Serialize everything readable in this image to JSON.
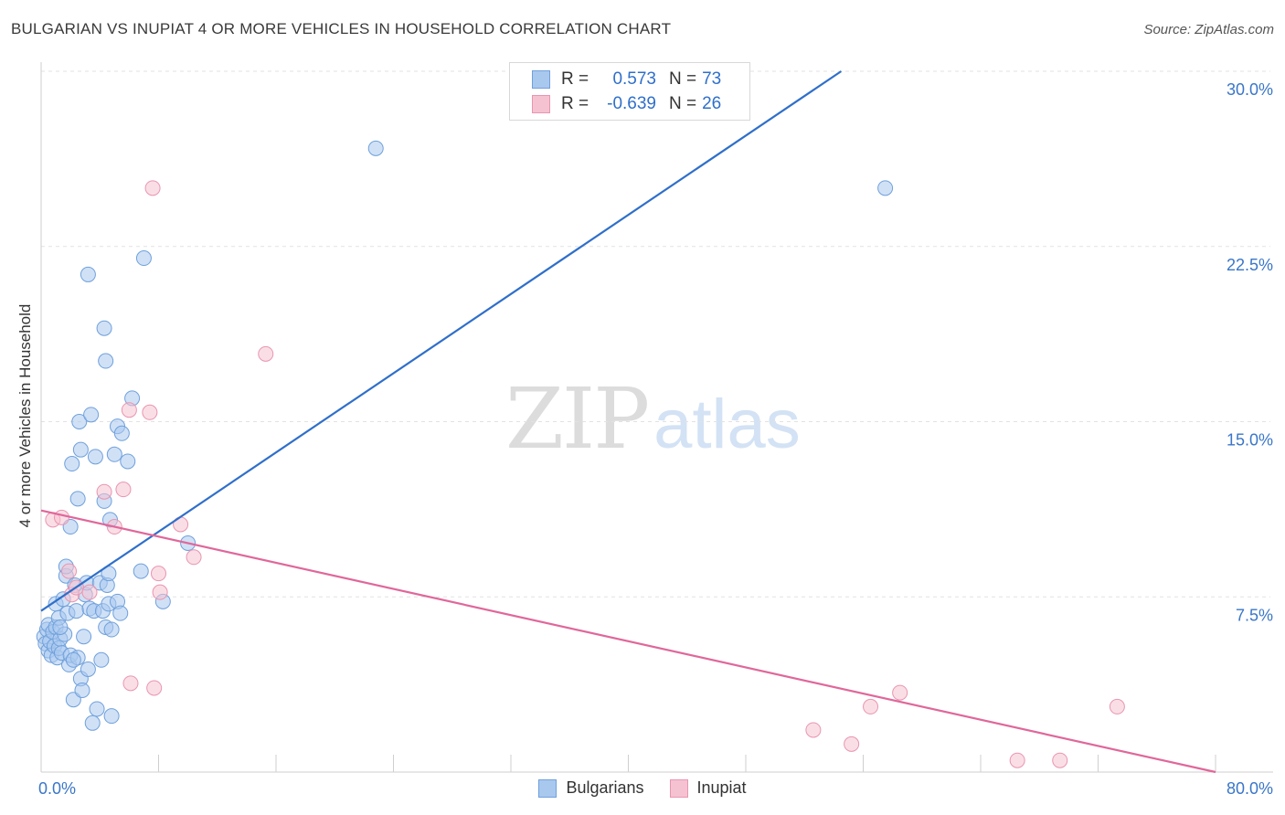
{
  "title": "BULGARIAN VS INUPIAT 4 OR MORE VEHICLES IN HOUSEHOLD CORRELATION CHART",
  "source": "Source: ZipAtlas.com",
  "watermark": {
    "zip": "ZIP",
    "atlas": "atlas"
  },
  "legend_top": {
    "rows": [
      {
        "r_label": "R =",
        "r_value": "0.573",
        "n_label": "N =",
        "n_value": "73"
      },
      {
        "r_label": "R =",
        "r_value": "-0.639",
        "n_label": "N =",
        "n_value": "26"
      }
    ]
  },
  "legend_bottom": {
    "series1": "Bulgarians",
    "series2": "Inupiat"
  },
  "colors": {
    "blue_fill": "#a9c8ee",
    "blue_stroke": "#6fa0dc",
    "blue_line": "#2f6fca",
    "pink_fill": "#f5c2d2",
    "pink_stroke": "#e995b0",
    "pink_line": "#e0679a",
    "tick_text": "#3a76c8",
    "grid": "#e2e2e2"
  },
  "chart_data": {
    "type": "scatter",
    "title": "BULGARIAN VS INUPIAT 4 OR MORE VEHICLES IN HOUSEHOLD CORRELATION CHART",
    "xlabel": "",
    "ylabel": "4 or more Vehicles in Household",
    "xlim": [
      0,
      80
    ],
    "ylim": [
      0,
      30
    ],
    "x_tick_labels": [
      {
        "value": 0,
        "label": "0.0%"
      },
      {
        "value": 80,
        "label": "80.0%"
      }
    ],
    "y_tick_labels": [
      {
        "value": 7.5,
        "label": "7.5%"
      },
      {
        "value": 15,
        "label": "15.0%"
      },
      {
        "value": 22.5,
        "label": "22.5%"
      },
      {
        "value": 30,
        "label": "30.0%"
      }
    ],
    "series": [
      {
        "name": "Bulgarians",
        "r": 0.573,
        "n": 73,
        "trend": [
          [
            0,
            6.9
          ],
          [
            54.5,
            30.0
          ]
        ],
        "points": [
          [
            0.2,
            5.8
          ],
          [
            0.3,
            5.5
          ],
          [
            0.4,
            6.1
          ],
          [
            0.5,
            5.2
          ],
          [
            0.5,
            6.3
          ],
          [
            0.6,
            5.6
          ],
          [
            0.7,
            5.0
          ],
          [
            0.8,
            6.0
          ],
          [
            0.9,
            5.4
          ],
          [
            1.0,
            6.2
          ],
          [
            1.0,
            7.2
          ],
          [
            1.1,
            4.9
          ],
          [
            1.2,
            5.3
          ],
          [
            1.2,
            6.6
          ],
          [
            1.3,
            5.7
          ],
          [
            1.4,
            5.1
          ],
          [
            1.5,
            7.4
          ],
          [
            1.6,
            5.9
          ],
          [
            1.7,
            8.4
          ],
          [
            1.8,
            6.8
          ],
          [
            1.9,
            4.6
          ],
          [
            2.0,
            5.0
          ],
          [
            2.0,
            10.5
          ],
          [
            2.1,
            13.2
          ],
          [
            2.2,
            3.1
          ],
          [
            2.3,
            8.0
          ],
          [
            2.4,
            6.9
          ],
          [
            2.5,
            4.9
          ],
          [
            2.6,
            15.0
          ],
          [
            2.7,
            4.0
          ],
          [
            2.8,
            3.5
          ],
          [
            2.9,
            5.8
          ],
          [
            2.5,
            11.7
          ],
          [
            2.7,
            13.8
          ],
          [
            3.0,
            7.6
          ],
          [
            3.1,
            8.1
          ],
          [
            3.2,
            4.4
          ],
          [
            3.3,
            7.0
          ],
          [
            3.4,
            15.3
          ],
          [
            3.5,
            2.1
          ],
          [
            3.6,
            6.9
          ],
          [
            3.7,
            13.5
          ],
          [
            3.8,
            2.7
          ],
          [
            4.0,
            8.1
          ],
          [
            4.1,
            4.8
          ],
          [
            4.2,
            6.9
          ],
          [
            4.3,
            11.6
          ],
          [
            4.4,
            6.2
          ],
          [
            4.5,
            8.0
          ],
          [
            4.6,
            7.2
          ],
          [
            4.7,
            10.8
          ],
          [
            4.8,
            6.1
          ],
          [
            5.0,
            13.6
          ],
          [
            5.2,
            7.3
          ],
          [
            5.4,
            6.8
          ],
          [
            4.3,
            19.0
          ],
          [
            4.4,
            17.6
          ],
          [
            5.9,
            13.3
          ],
          [
            3.2,
            21.3
          ],
          [
            5.2,
            14.8
          ],
          [
            5.5,
            14.5
          ],
          [
            6.2,
            16.0
          ],
          [
            7.0,
            22.0
          ],
          [
            8.3,
            7.3
          ],
          [
            10.0,
            9.8
          ],
          [
            6.8,
            8.6
          ],
          [
            4.8,
            2.4
          ],
          [
            4.6,
            8.5
          ],
          [
            1.7,
            8.8
          ],
          [
            2.2,
            4.8
          ],
          [
            1.3,
            6.2
          ],
          [
            22.8,
            26.7
          ],
          [
            57.5,
            25.0
          ]
        ]
      },
      {
        "name": "Inupiat",
        "r": -0.639,
        "n": 26,
        "trend": [
          [
            0,
            11.2
          ],
          [
            80,
            0.0
          ]
        ],
        "points": [
          [
            0.8,
            10.8
          ],
          [
            1.4,
            10.9
          ],
          [
            1.9,
            8.6
          ],
          [
            2.1,
            7.6
          ],
          [
            2.4,
            7.9
          ],
          [
            3.3,
            7.7
          ],
          [
            4.3,
            12.0
          ],
          [
            5.0,
            10.5
          ],
          [
            5.6,
            12.1
          ],
          [
            6.0,
            15.5
          ],
          [
            6.1,
            3.8
          ],
          [
            7.4,
            15.4
          ],
          [
            7.7,
            3.6
          ],
          [
            7.6,
            25.0
          ],
          [
            8.0,
            8.5
          ],
          [
            8.1,
            7.7
          ],
          [
            9.5,
            10.6
          ],
          [
            10.4,
            9.2
          ],
          [
            15.3,
            17.9
          ],
          [
            52.6,
            1.8
          ],
          [
            55.2,
            1.2
          ],
          [
            56.5,
            2.8
          ],
          [
            58.5,
            3.4
          ],
          [
            66.5,
            0.5
          ],
          [
            69.4,
            0.5
          ],
          [
            73.3,
            2.8
          ]
        ]
      }
    ]
  }
}
